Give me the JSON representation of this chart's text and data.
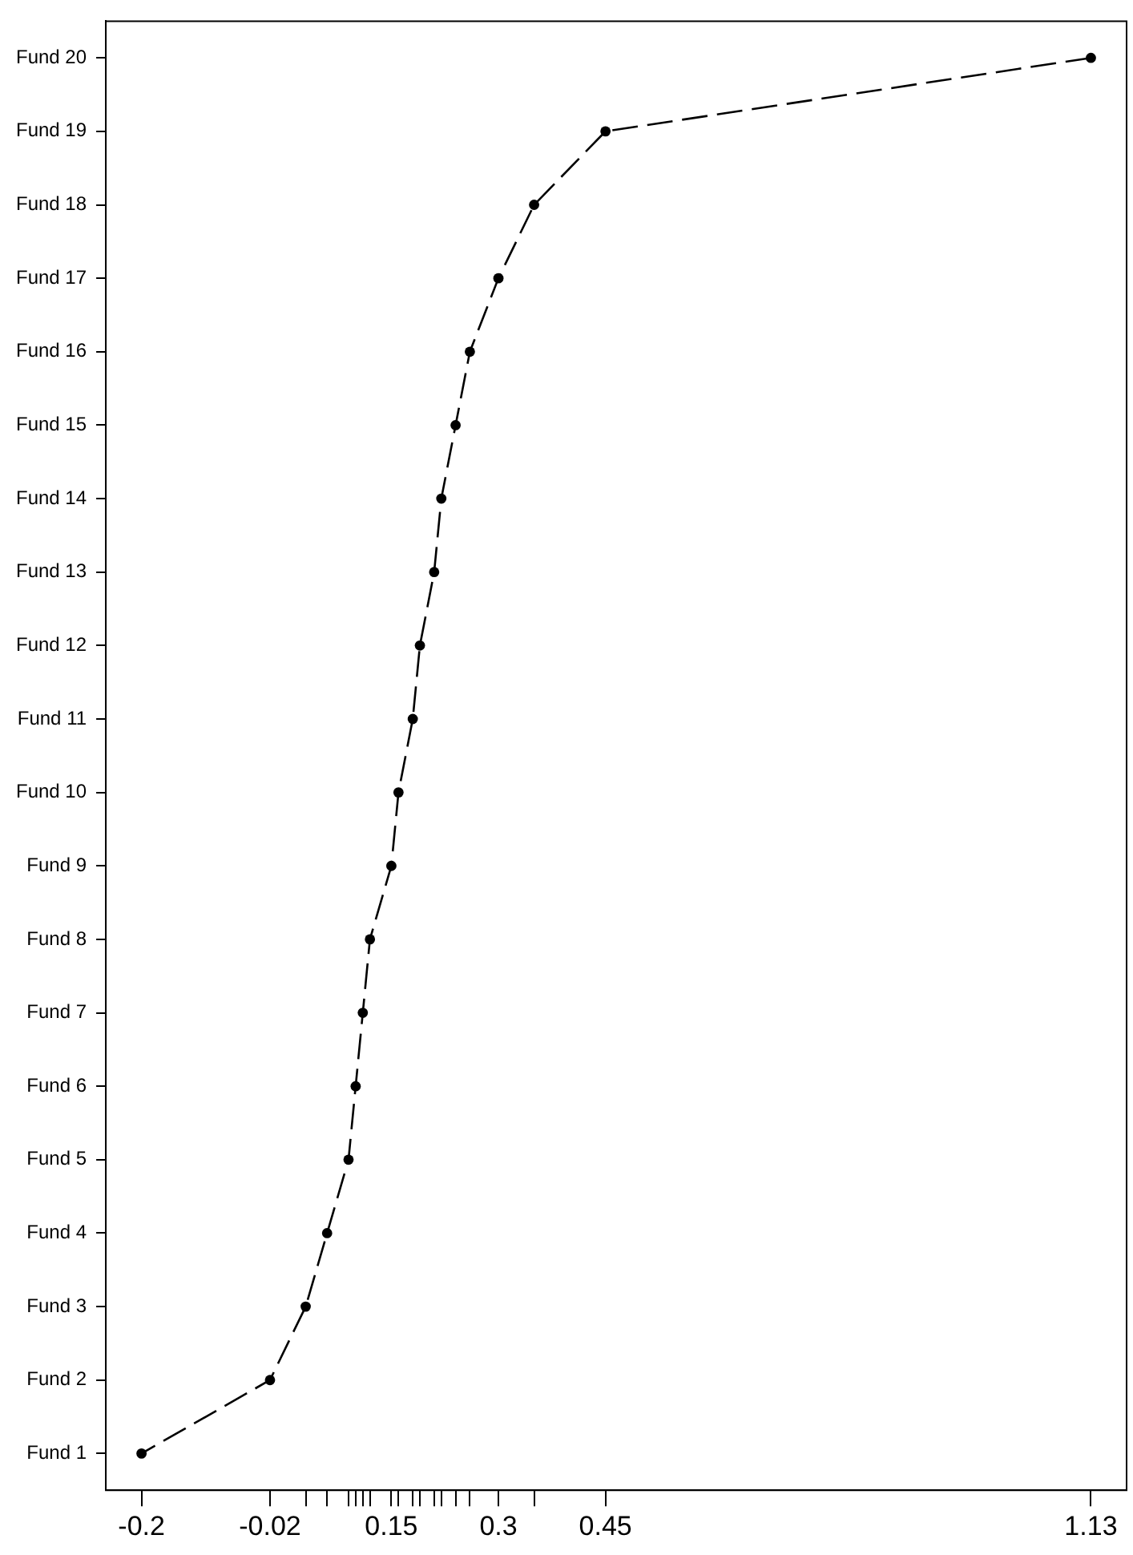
{
  "chart_data": {
    "type": "line",
    "orientation": "horizontal",
    "categories": [
      "Fund 20",
      "Fund 19",
      "Fund 18",
      "Fund 17",
      "Fund 16",
      "Fund 15",
      "Fund 14",
      "Fund 13",
      "Fund 12",
      "Fund 11",
      "Fund 10",
      "Fund 9",
      "Fund 8",
      "Fund 7",
      "Fund 6",
      "Fund 5",
      "Fund 4",
      "Fund 3",
      "Fund 2",
      "Fund 1"
    ],
    "series": [
      {
        "color": "#000000",
        "values": [
          1.13,
          0.45,
          0.35,
          0.3,
          0.26,
          0.24,
          0.22,
          0.21,
          0.19,
          0.18,
          0.16,
          0.15,
          0.12,
          0.11,
          0.1,
          0.09,
          0.06,
          0.03,
          -0.02,
          -0.2
        ]
      }
    ],
    "xlim": [
      -0.25,
      1.18
    ],
    "xticks": [
      -0.2,
      -0.02,
      {
        "value": 0.03,
        "label": null
      },
      {
        "value": 0.06,
        "label": null
      },
      {
        "value": 0.09,
        "label": null
      },
      {
        "value": 0.1,
        "label": null
      },
      {
        "value": 0.11,
        "label": null
      },
      {
        "value": 0.12,
        "label": null
      },
      0.15,
      {
        "value": 0.16,
        "label": null
      },
      {
        "value": 0.18,
        "label": null
      },
      {
        "value": 0.19,
        "label": null
      },
      {
        "value": 0.21,
        "label": null
      },
      {
        "value": 0.22,
        "label": null
      },
      {
        "value": 0.24,
        "label": null
      },
      {
        "value": 0.26,
        "label": null
      },
      0.3,
      {
        "value": 0.35,
        "label": null
      },
      0.45,
      1.13
    ],
    "marker": "circle",
    "line_style": "dashed",
    "grid": false,
    "legend": false
  }
}
